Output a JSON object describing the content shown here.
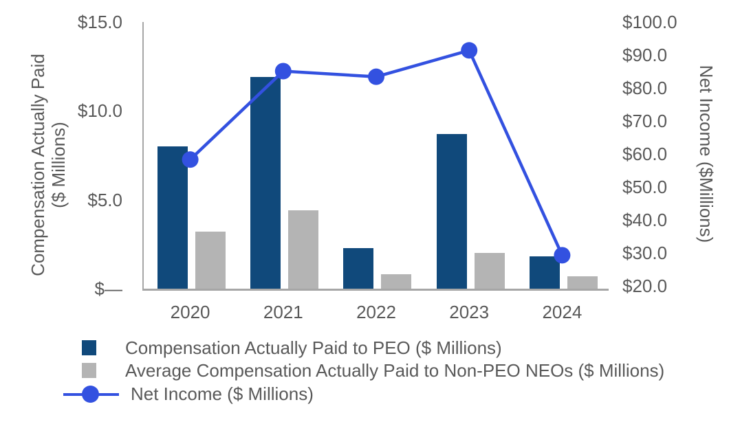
{
  "chart_data": {
    "type": "combo",
    "categories": [
      "2020",
      "2021",
      "2022",
      "2023",
      "2024"
    ],
    "series": [
      {
        "name": "Compensation Actually Paid to PEO ($ Millions)",
        "type": "bar",
        "axis": "left",
        "color": "#10497B",
        "values": [
          8.0,
          11.9,
          2.3,
          8.7,
          1.8
        ]
      },
      {
        "name": "Average Compensation Actually Paid to Non-PEO NEOs ($ Millions)",
        "type": "bar",
        "axis": "left",
        "color": "#B4B4B4",
        "values": [
          3.2,
          4.4,
          0.8,
          2.0,
          0.7
        ]
      },
      {
        "name": "Net Income ($ Millions)",
        "type": "line",
        "axis": "right",
        "color": "#3351E0",
        "values": [
          58.3,
          85.1,
          83.4,
          91.4,
          29.3
        ]
      }
    ],
    "left_axis": {
      "title_line1": "Compensation Actually Paid",
      "title_line2": "($ Millions)",
      "min": 0,
      "max": 15,
      "ticks": [
        {
          "v": 15,
          "label": "$15.0"
        },
        {
          "v": 10,
          "label": "$10.0"
        },
        {
          "v": 5,
          "label": "$5.0"
        },
        {
          "v": 0,
          "label": "$—"
        }
      ]
    },
    "right_axis": {
      "title": "Net Income ($Millions)",
      "min": 20,
      "max": 100,
      "ticks": [
        {
          "v": 100,
          "label": "$100.0"
        },
        {
          "v": 90,
          "label": "$90.0"
        },
        {
          "v": 80,
          "label": "$80.0"
        },
        {
          "v": 70,
          "label": "$70.0"
        },
        {
          "v": 60,
          "label": "$60.0"
        },
        {
          "v": 50,
          "label": "$50.0"
        },
        {
          "v": 40,
          "label": "$40.0"
        },
        {
          "v": 30,
          "label": "$30.0"
        },
        {
          "v": 20,
          "label": "$20.0"
        }
      ]
    },
    "legend_position": "bottom-left",
    "grid": false,
    "colors": {
      "bar_blue": "#10497B",
      "bar_gray": "#B4B4B4",
      "line_blue": "#3351E0",
      "text": "#595959",
      "axis": "#A6A6A6"
    }
  }
}
